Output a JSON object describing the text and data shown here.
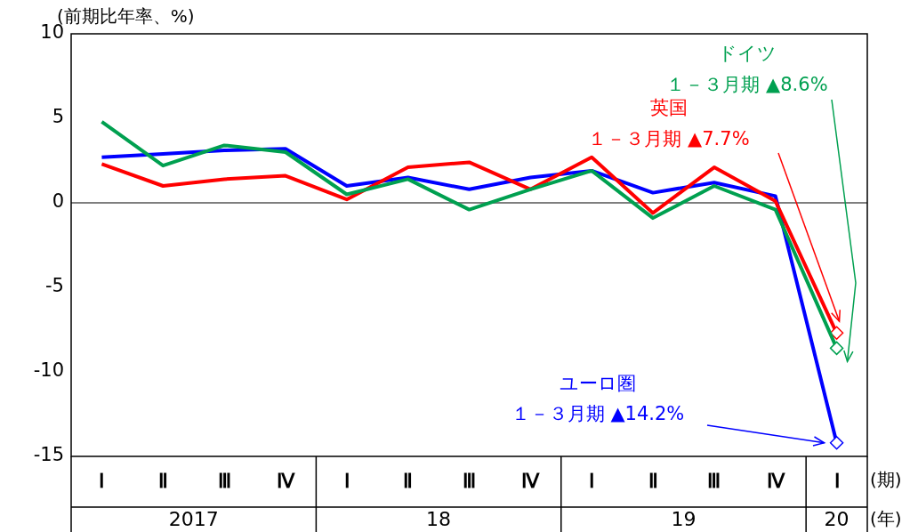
{
  "chart_data": {
    "type": "line",
    "ylabel": "(前期比年率、%)",
    "xlabel": "(期)",
    "categories": [
      "Ⅰ",
      "Ⅱ",
      "Ⅲ",
      "Ⅳ",
      "Ⅰ",
      "Ⅱ",
      "Ⅲ",
      "Ⅳ",
      "Ⅰ",
      "Ⅱ",
      "Ⅲ",
      "Ⅳ",
      "Ⅰ"
    ],
    "ylim": [
      -15,
      10
    ],
    "yticks": [
      10,
      5,
      0,
      -5,
      -10,
      -15
    ],
    "grid": false,
    "legend": false,
    "line_style": "solid",
    "series": [
      {
        "name": "ドイツ",
        "color": "#00a050",
        "values": [
          4.8,
          2.2,
          3.4,
          3.0,
          0.5,
          1.4,
          -0.4,
          0.8,
          1.9,
          -0.9,
          1.0,
          -0.4,
          -8.6
        ]
      },
      {
        "name": "英国",
        "color": "#ff0000",
        "values": [
          2.3,
          1.0,
          1.4,
          1.6,
          0.2,
          2.1,
          2.4,
          0.8,
          2.7,
          -0.6,
          2.1,
          0.1,
          -7.7
        ]
      },
      {
        "name": "ユーロ圏",
        "color": "#0000ff",
        "values": [
          2.7,
          2.9,
          3.1,
          3.2,
          1.0,
          1.5,
          0.8,
          1.5,
          1.9,
          0.6,
          1.2,
          0.4,
          -14.2
        ]
      }
    ],
    "ref_lines": [
      {
        "axis": "y",
        "value": 0,
        "color": "#000000"
      }
    ],
    "annotations": [
      "１－３月期 ▲8.6%",
      "１－３月期 ▲7.7%",
      "１－３月期 ▲14.2%",
      "2017",
      "18",
      "19",
      "20",
      "(年)"
    ]
  }
}
